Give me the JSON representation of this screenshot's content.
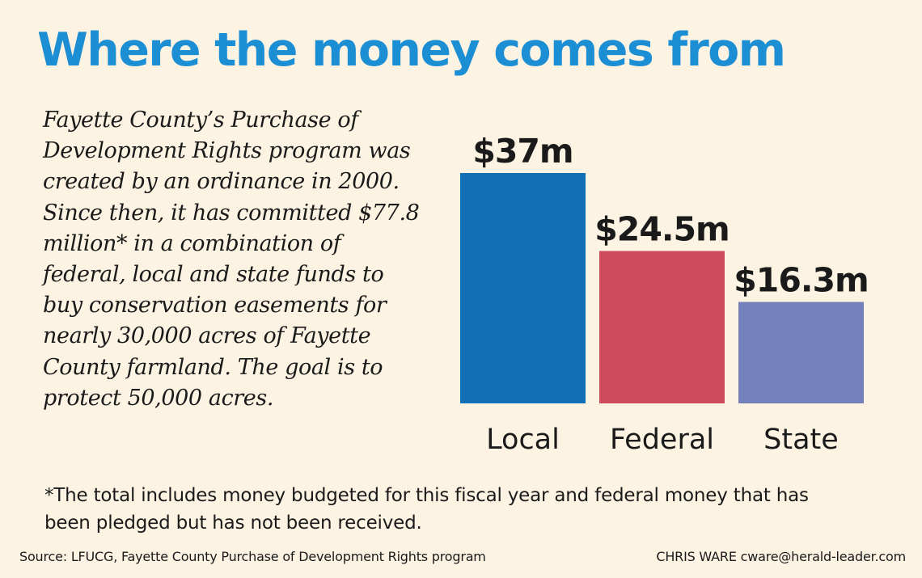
{
  "title": "Where the money comes from",
  "description": "Fayette County’s Purchase of Development Rights program was created by an ordinance in 2000. Since then, it has committed  $77.8 million* in a combination of federal, local and state funds to buy conservation easements for nearly 30,000 acres of Fayette County farmland. The goal is to protect 50,000 acres.",
  "footnote": "*The total includes money budgeted for this fiscal year and federal money that has been pledged but has not been received.",
  "source": "Source: LFUCG, Fayette County Purchase of Development Rights program",
  "credit": "CHRIS WARE cware@herald-leader.com",
  "chart_data": {
    "type": "bar",
    "categories": [
      "Local",
      "Federal",
      "State"
    ],
    "values": [
      37,
      24.5,
      16.3
    ],
    "value_labels": [
      "$37m",
      "$24.5m",
      "$16.3m"
    ],
    "colors": [
      "#1170b5",
      "#cd4a5c",
      "#7380b9"
    ],
    "unit": "million dollars",
    "ylim": [
      0,
      37
    ],
    "grid": false,
    "legend": "none"
  }
}
